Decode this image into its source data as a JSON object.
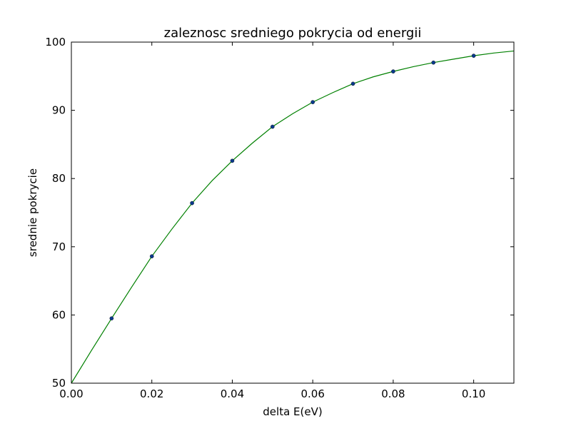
{
  "chart_data": {
    "type": "line",
    "title": "zaleznosc sredniego pokrycia od energii",
    "xlabel": "delta E(eV)",
    "ylabel": "srednie pokrycie",
    "xlim": [
      0.0,
      0.11
    ],
    "ylim": [
      50,
      100
    ],
    "grid": false,
    "x_ticks": [
      0.0,
      0.02,
      0.04,
      0.06,
      0.08,
      0.1
    ],
    "x_tick_labels": [
      "0.00",
      "0.02",
      "0.04",
      "0.06",
      "0.08",
      "0.10"
    ],
    "y_ticks": [
      50,
      60,
      70,
      80,
      90,
      100
    ],
    "y_tick_labels": [
      "50",
      "60",
      "70",
      "80",
      "90",
      "100"
    ],
    "series": [
      {
        "kind": "scatter",
        "color": "#0a3a8c",
        "x": [
          0.01,
          0.02,
          0.03,
          0.04,
          0.05,
          0.06,
          0.07,
          0.08,
          0.09,
          0.1
        ],
        "y": [
          59.5,
          68.6,
          76.4,
          82.6,
          87.6,
          91.2,
          93.9,
          95.7,
          97.0,
          98.0
        ]
      },
      {
        "kind": "line",
        "color": "#008000",
        "x": [
          0.0,
          0.005,
          0.01,
          0.015,
          0.02,
          0.025,
          0.03,
          0.035,
          0.04,
          0.045,
          0.05,
          0.055,
          0.06,
          0.065,
          0.07,
          0.075,
          0.08,
          0.085,
          0.09,
          0.095,
          0.1,
          0.105,
          0.11
        ],
        "y": [
          50.0,
          54.8,
          59.5,
          64.1,
          68.6,
          72.6,
          76.4,
          79.7,
          82.6,
          85.2,
          87.6,
          89.5,
          91.2,
          92.6,
          93.9,
          94.9,
          95.7,
          96.4,
          97.0,
          97.5,
          98.0,
          98.4,
          98.7
        ]
      }
    ]
  }
}
